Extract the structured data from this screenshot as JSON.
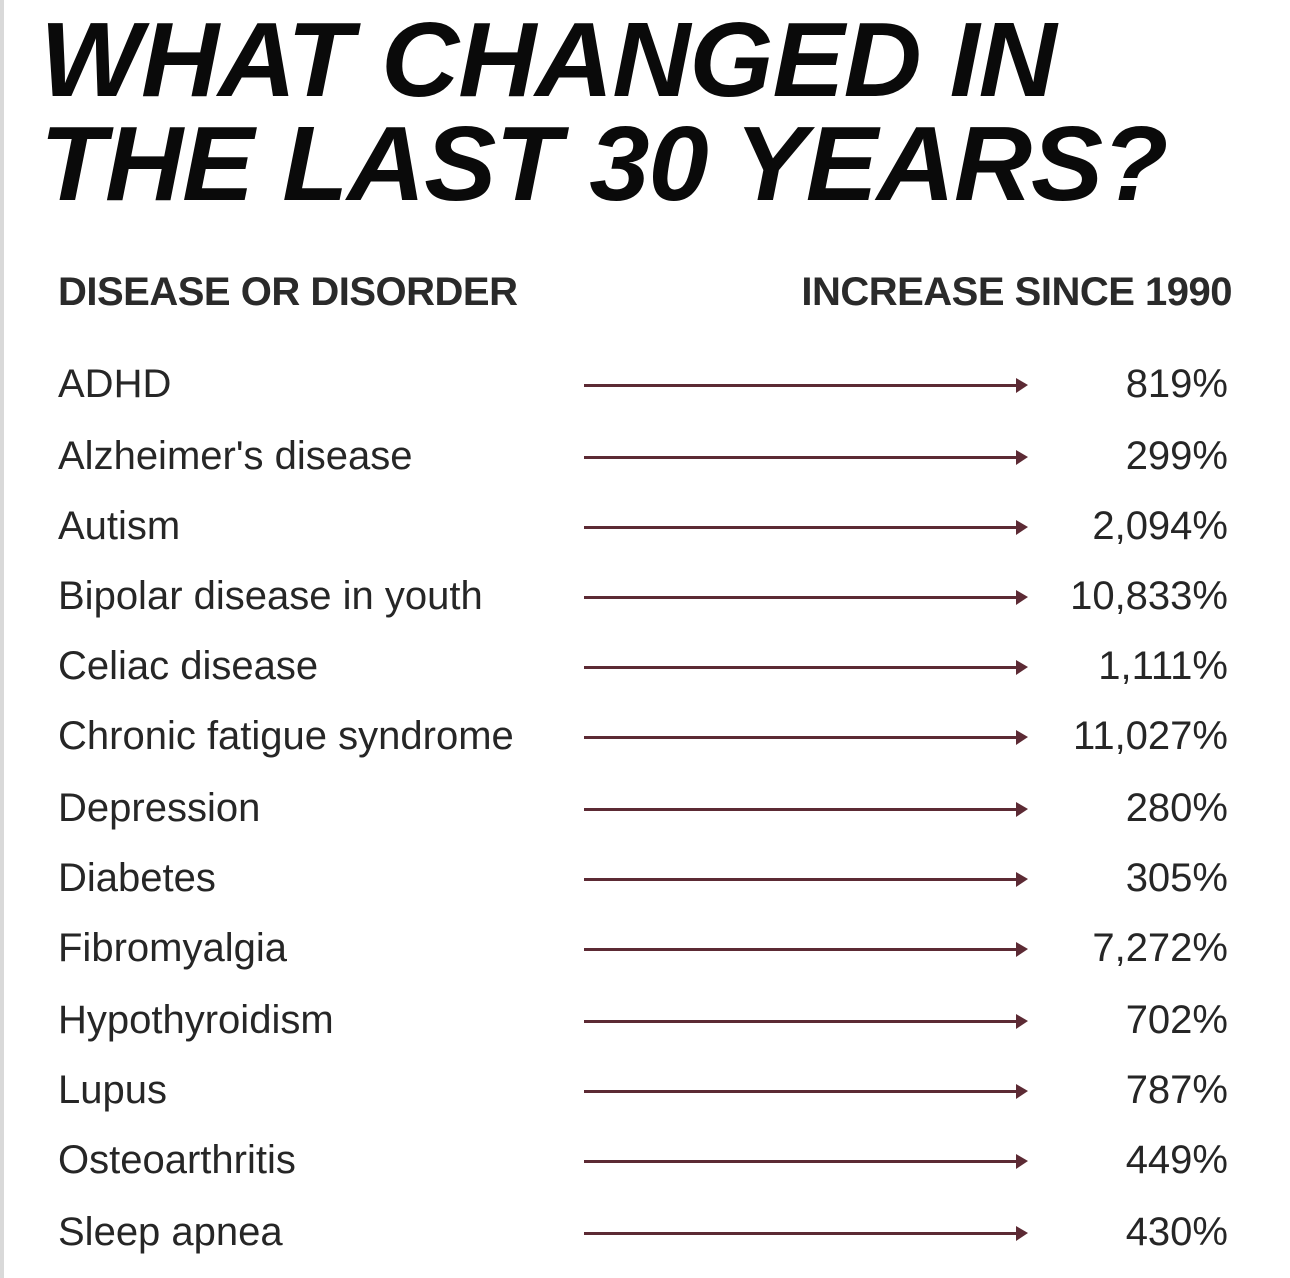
{
  "title": {
    "line1": "WHAT CHANGED IN",
    "line2": "THE LAST 30 YEARS?"
  },
  "headers": {
    "left": "DISEASE OR DISORDER",
    "right": "INCREASE SINCE 1990"
  },
  "arrow_color": "#5c2a34",
  "rows": [
    {
      "label": "ADHD",
      "value": "819%"
    },
    {
      "label": "Alzheimer's disease",
      "value": "299%"
    },
    {
      "label": "Autism",
      "value": "2,094%"
    },
    {
      "label": "Bipolar disease in youth",
      "value": "10,833%"
    },
    {
      "label": "Celiac disease",
      "value": "1,111%"
    },
    {
      "label": "Chronic fatigue syndrome",
      "value": "11,027%"
    },
    {
      "label": "Depression",
      "value": "280%"
    },
    {
      "label": "Diabetes",
      "value": "305%"
    },
    {
      "label": "Fibromyalgia",
      "value": "7,272%"
    },
    {
      "label": "Hypothyroidism",
      "value": "702%"
    },
    {
      "label": "Lupus",
      "value": "787%"
    },
    {
      "label": "Osteoarthritis",
      "value": "449%"
    },
    {
      "label": "Sleep apnea",
      "value": "430%"
    }
  ]
}
